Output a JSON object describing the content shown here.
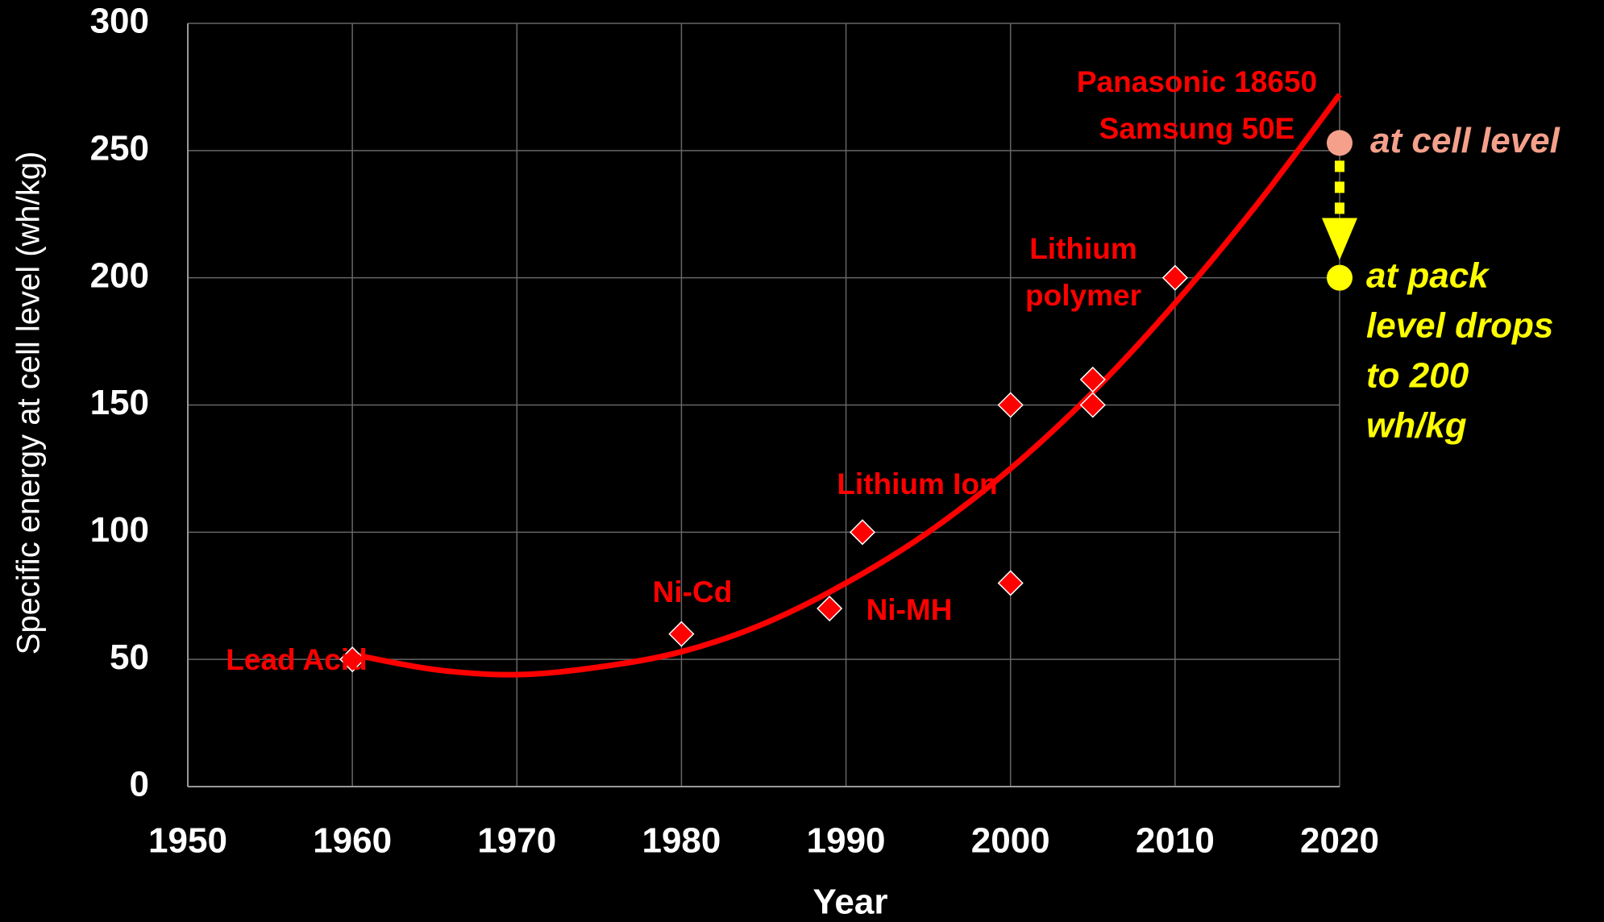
{
  "chart_data": {
    "type": "scatter",
    "xlabel": "Year",
    "ylabel": "Specific energy at cell level (wh/kg)",
    "xlim": [
      1950,
      2020
    ],
    "xticks": [
      1950,
      1960,
      1970,
      1980,
      1990,
      2000,
      2010,
      2020
    ],
    "ylim": [
      0,
      300
    ],
    "yticks": [
      0,
      50,
      100,
      150,
      200,
      250,
      300
    ],
    "grid": true,
    "points": {
      "color": "#ff0000",
      "x": [
        1960,
        1980,
        1989,
        1991,
        2000,
        2000,
        2005,
        2005,
        2010
      ],
      "values": [
        50,
        60,
        70,
        100,
        150,
        80,
        160,
        150,
        200
      ]
    },
    "trend": {
      "color": "#ff0000",
      "x": [
        1960,
        1965,
        1970,
        1975,
        1980,
        1985,
        1990,
        1995,
        2000,
        2005,
        2010,
        2015,
        2020
      ],
      "values": [
        52,
        46,
        44,
        47,
        53,
        64,
        80,
        100,
        125,
        155,
        190,
        229,
        272
      ]
    },
    "labels": [
      {
        "lines": [
          "Lead Acid"
        ]
      },
      {
        "lines": [
          "Ni-Cd"
        ]
      },
      {
        "lines": [
          "Ni-MH"
        ]
      },
      {
        "lines": [
          "Lithium Ion"
        ]
      },
      {
        "lines": [
          "Lithium",
          "polymer"
        ]
      },
      {
        "lines": [
          "Panasonic 18650",
          "Samsung 50E"
        ]
      }
    ],
    "cell_level": {
      "x": 2020,
      "value": 253,
      "color": "#f4a08a",
      "lines": [
        "at cell level"
      ]
    },
    "pack_level": {
      "x": 2020,
      "value": 200,
      "color": "#ffff00",
      "lines": [
        "at pack",
        "level drops",
        "to 200",
        "wh/kg"
      ]
    }
  }
}
